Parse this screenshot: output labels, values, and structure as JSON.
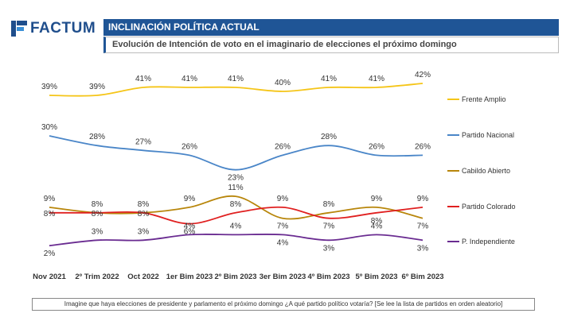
{
  "brand": {
    "name": "FACTUM"
  },
  "header": {
    "title": "INCLINACIÓN POLÍTICA ACTUAL",
    "subtitle": "Evolución de Intención de voto en el imaginario de elecciones el próximo domingo"
  },
  "footer": {
    "note": "Imagine que haya elecciones de presidente y parlamento el próximo domingo ¿A qué partido político votaría? [Se lee la lista de partidos en orden aleatorio]"
  },
  "chart_data": {
    "type": "line",
    "categories": [
      "Nov 2021",
      "2º Trim 2022",
      "Oct 2022",
      "1er Bim 2023",
      "2º Bim 2023",
      "3er Bim 2023",
      "4º Bim 2023",
      "5º Bim 2023",
      "6º Bim 2023"
    ],
    "legend_position": "right",
    "grid": false,
    "series": [
      {
        "name": "Frente Amplio",
        "color": "#f5c518",
        "values": [
          39,
          39,
          41,
          41,
          41,
          40,
          41,
          41,
          42
        ],
        "labels": [
          "39%",
          "39%",
          "41%",
          "41%",
          "41%",
          "40%",
          "41%",
          "41%",
          "42%"
        ]
      },
      {
        "name": "Partido Nacional",
        "color": "#4a86c8",
        "values": [
          30,
          28,
          27,
          26,
          23,
          26,
          28,
          26,
          26
        ],
        "labels": [
          "30%",
          "28%",
          "27%",
          "26%",
          "23%",
          "26%",
          "28%",
          "26%",
          "26%"
        ]
      },
      {
        "name": "Cabildo Abierto",
        "color": "#b8860b",
        "values": [
          9,
          8,
          8,
          9,
          11,
          7,
          8,
          9,
          7
        ],
        "labels": [
          "9%",
          "8%",
          "8%",
          "9%",
          "11%",
          "7%",
          "8%",
          "9%",
          "7%"
        ]
      },
      {
        "name": "Partido Colorado",
        "color": "#e02020",
        "values": [
          8,
          8,
          8,
          6,
          8,
          9,
          7,
          8,
          9
        ],
        "labels": [
          "8%",
          "8%",
          "8%",
          "6%",
          "8%",
          "9%",
          "7%",
          "8%",
          "9%"
        ]
      },
      {
        "name": "P. Independiente",
        "color": "#6a2c91",
        "values": [
          2,
          3,
          3,
          4,
          4,
          4,
          3,
          4,
          3
        ],
        "labels": [
          "2%",
          "3%",
          "3%",
          "4%",
          "4%",
          "4%",
          "3%",
          "4%",
          "3%"
        ]
      }
    ]
  }
}
